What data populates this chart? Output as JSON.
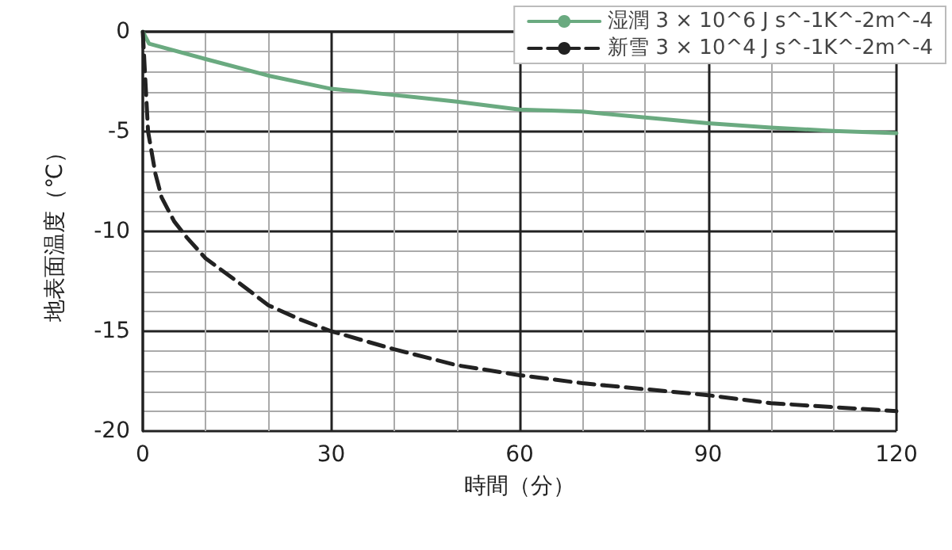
{
  "chart_data": {
    "type": "line",
    "xlabel": "時間（分）",
    "ylabel": "地表面温度（℃）",
    "xlim": [
      0,
      120
    ],
    "xticks": [
      0,
      30,
      60,
      90,
      120
    ],
    "ylim": [
      -20,
      0
    ],
    "yticks": [
      -20,
      -15,
      -10,
      -5,
      0
    ],
    "grid": true,
    "legend": "top right",
    "marker": "none",
    "series": [
      {
        "name": "湿潤 3 × 10^6 J s^-1K^-2m^-4",
        "color": "#6aaa80",
        "line_style": "solid",
        "x": [
          0,
          1,
          10,
          20,
          30,
          40,
          50,
          60,
          70,
          80,
          90,
          100,
          110,
          120
        ],
        "values": [
          0,
          -0.6,
          -1.37,
          -2.2,
          -2.86,
          -3.17,
          -3.5,
          -3.9,
          -4.0,
          -4.3,
          -4.58,
          -4.8,
          -4.97,
          -5.08
        ]
      },
      {
        "name": "新雪 3 × 10^4 J s^-1K^-2m^-4",
        "color": "#222222",
        "line_style": "dashed",
        "x": [
          0,
          0.4,
          0.84,
          2,
          3,
          5,
          7,
          10,
          15,
          20,
          25,
          30,
          40,
          50,
          60,
          70,
          80,
          90,
          100,
          110,
          120
        ],
        "values": [
          0,
          -2.4,
          -5.0,
          -7.1,
          -8.3,
          -9.5,
          -10.3,
          -11.35,
          -12.5,
          -13.7,
          -14.4,
          -15.0,
          -15.9,
          -16.7,
          -17.2,
          -17.6,
          -17.9,
          -18.2,
          -18.6,
          -18.8,
          -19.0
        ]
      }
    ]
  }
}
